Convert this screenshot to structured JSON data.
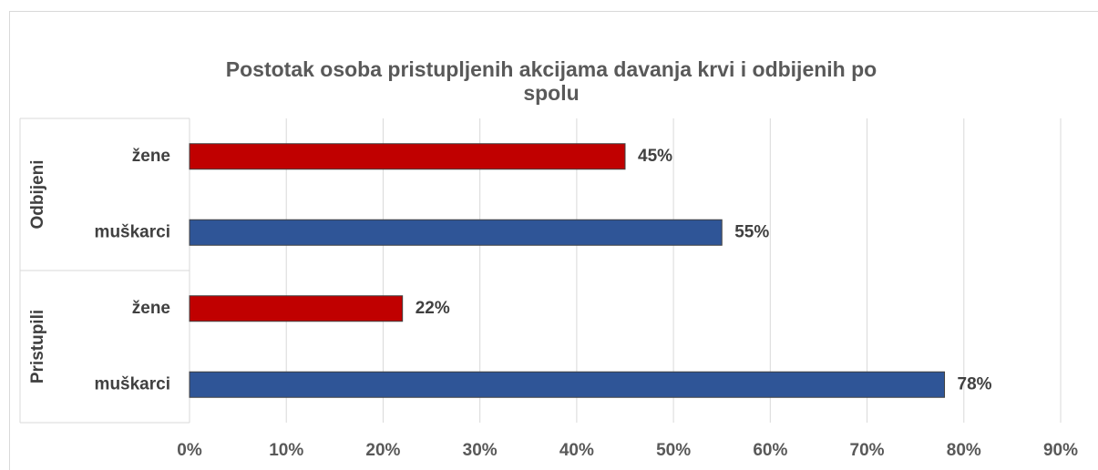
{
  "chart_data": {
    "type": "bar",
    "orientation": "horizontal",
    "title": "Postotak osoba pristupljenih akcijama davanja krvi i odbijenih po spolu",
    "groups": [
      {
        "name": "Odbijeni",
        "categories": [
          "žene",
          "muškarci"
        ],
        "values": [
          45,
          55
        ],
        "value_labels": [
          "45%",
          "55%"
        ],
        "colors": [
          "#c00000",
          "#2f5597"
        ]
      },
      {
        "name": "Pristupili",
        "categories": [
          "žene",
          "muškarci"
        ],
        "values": [
          22,
          78
        ],
        "value_labels": [
          "22%",
          "78%"
        ],
        "colors": [
          "#c00000",
          "#2f5597"
        ]
      }
    ],
    "xlim": [
      0,
      90
    ],
    "xticks": [
      {
        "value": 0,
        "label": "0%"
      },
      {
        "value": 10,
        "label": "10%"
      },
      {
        "value": 20,
        "label": "20%"
      },
      {
        "value": 30,
        "label": "30%"
      },
      {
        "value": 40,
        "label": "40%"
      },
      {
        "value": 50,
        "label": "50%"
      },
      {
        "value": 60,
        "label": "60%"
      },
      {
        "value": 70,
        "label": "70%"
      },
      {
        "value": 80,
        "label": "80%"
      },
      {
        "value": 90,
        "label": "90%"
      }
    ],
    "grid": true
  }
}
